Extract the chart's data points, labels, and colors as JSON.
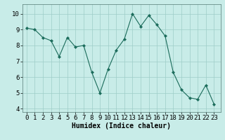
{
  "x": [
    0,
    1,
    2,
    3,
    4,
    5,
    6,
    7,
    8,
    9,
    10,
    11,
    12,
    13,
    14,
    15,
    16,
    17,
    18,
    19,
    20,
    21,
    22,
    23
  ],
  "y": [
    9.1,
    9.0,
    8.5,
    8.3,
    7.3,
    8.5,
    7.9,
    8.0,
    6.3,
    5.0,
    6.5,
    7.7,
    8.4,
    10.0,
    9.2,
    9.9,
    9.3,
    8.6,
    6.3,
    5.2,
    4.7,
    4.6,
    5.5,
    4.3
  ],
  "line_color": "#1a6b5a",
  "marker": "D",
  "marker_size": 2.2,
  "bg_color": "#c8ece8",
  "grid_color": "#9ecdc7",
  "xlabel": "Humidex (Indice chaleur)",
  "xlabel_fontsize": 7,
  "tick_fontsize": 6.5,
  "xlim": [
    -0.5,
    23.8
  ],
  "ylim": [
    3.8,
    10.6
  ],
  "yticks": [
    4,
    5,
    6,
    7,
    8,
    9,
    10
  ],
  "xticks": [
    0,
    1,
    2,
    3,
    4,
    5,
    6,
    7,
    8,
    9,
    10,
    11,
    12,
    13,
    14,
    15,
    16,
    17,
    18,
    19,
    20,
    21,
    22,
    23
  ]
}
